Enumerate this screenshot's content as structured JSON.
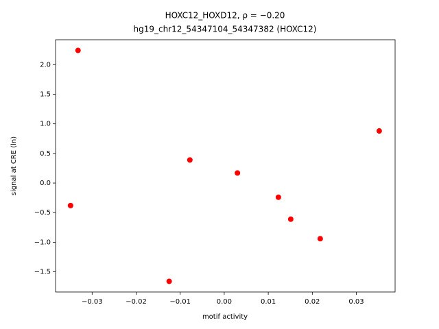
{
  "chart_data": {
    "type": "scatter",
    "title": "HOXC12_HOXD12, ρ = −0.20",
    "subtitle": "hg19_chr12_54347104_54347382 (HOXC12)",
    "x_label": "motif activity",
    "y_label": "signal at CRE (ln)",
    "color": "#ff0000",
    "x": [
      -0.0332,
      -0.0349,
      -0.0125,
      -0.0078,
      0.003,
      0.0123,
      0.0151,
      0.0218,
      0.0352
    ],
    "y": [
      2.24,
      -0.38,
      -1.66,
      0.39,
      0.17,
      -0.24,
      -0.61,
      -0.94,
      0.88
    ],
    "xlim": [
      -0.0383,
      0.0388
    ],
    "ylim": [
      -1.84,
      2.42
    ],
    "xticks": [
      {
        "value": -0.03,
        "label": "−0.03"
      },
      {
        "value": -0.02,
        "label": "−0.02"
      },
      {
        "value": -0.01,
        "label": "−0.01"
      },
      {
        "value": 0,
        "label": "0.00"
      },
      0.01,
      0.02,
      0.03
    ],
    "yticks": [
      {
        "value": -1.5,
        "label": "−1.5"
      },
      {
        "value": -1,
        "label": "−1.0"
      },
      {
        "value": -0.5,
        "label": "−0.5"
      },
      {
        "value": 0,
        "label": "0.0"
      },
      0.5,
      {
        "value": 1,
        "label": "1.0"
      },
      1.5,
      {
        "value": 2,
        "label": "2.0"
      }
    ]
  }
}
